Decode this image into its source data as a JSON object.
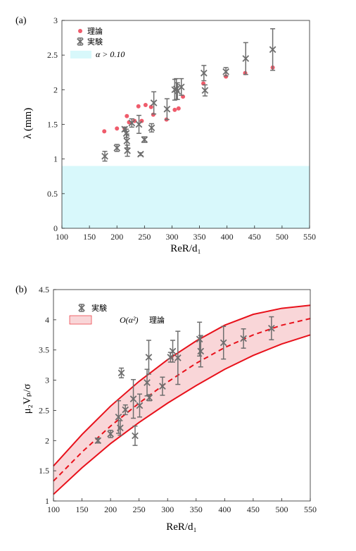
{
  "colors": {
    "theory": "#ef5b6b",
    "experiment": "#6e6e6e",
    "band_a": "#d8f8fb",
    "curve_b": "#e8111b",
    "band_b": "#f9d6d8"
  },
  "chart_data": [
    {
      "panel": "(a)",
      "type": "scatter",
      "xlabel": "ReR/d₁",
      "ylabel": "λ (mm)",
      "xlim": [
        100,
        550
      ],
      "ylim": [
        0,
        3
      ],
      "xticks": [
        "100",
        "150",
        "200",
        "250",
        "300",
        "350",
        "400",
        "450",
        "500",
        "550"
      ],
      "yticks": [
        "0",
        "0.5",
        "1",
        "1.5",
        "2",
        "2.5",
        "3"
      ],
      "grid": false,
      "legend_position": "top-left",
      "legend": {
        "theory_label": "理論",
        "experiment_label": "実験",
        "band_label": "α > 0.10"
      },
      "band": {
        "y_range": [
          0,
          0.9
        ],
        "name": "α > 0.10"
      },
      "series": [
        {
          "name": "理論",
          "x": [
            177,
            200,
            214,
            218,
            222,
            232,
            239,
            245,
            252,
            262,
            266,
            290,
            305,
            312,
            320,
            357,
            398,
            433,
            483
          ],
          "y": [
            1.4,
            1.44,
            1.44,
            1.62,
            1.53,
            1.55,
            1.76,
            1.55,
            1.78,
            1.75,
            1.64,
            1.57,
            1.71,
            1.73,
            1.9,
            2.09,
            2.19,
            2.24,
            2.32
          ]
        },
        {
          "name": "実験",
          "points": [
            {
              "x": 178,
              "y": 1.04,
              "err": 0.07
            },
            {
              "x": 200,
              "y": 1.16,
              "err": 0.05
            },
            {
              "x": 214,
              "y": 1.43,
              "err": 0.03
            },
            {
              "x": 217,
              "y": 1.37,
              "err": 0.06
            },
            {
              "x": 218,
              "y": 1.26,
              "err": 0.1
            },
            {
              "x": 219,
              "y": 1.12,
              "err": 0.08
            },
            {
              "x": 227,
              "y": 1.52,
              "err": 0.06
            },
            {
              "x": 240,
              "y": 1.5,
              "err": 0.13
            },
            {
              "x": 243,
              "y": 1.07,
              "err": 0.02
            },
            {
              "x": 250,
              "y": 1.28,
              "err": 0.04
            },
            {
              "x": 263,
              "y": 1.45,
              "err": 0.06
            },
            {
              "x": 267,
              "y": 1.81,
              "err": 0.16
            },
            {
              "x": 291,
              "y": 1.72,
              "err": 0.15
            },
            {
              "x": 305,
              "y": 2.0,
              "err": 0.15
            },
            {
              "x": 308,
              "y": 2.01,
              "err": 0.15
            },
            {
              "x": 310,
              "y": 1.98,
              "err": 0.12
            },
            {
              "x": 317,
              "y": 2.04,
              "err": 0.12
            },
            {
              "x": 358,
              "y": 2.24,
              "err": 0.11
            },
            {
              "x": 360,
              "y": 1.99,
              "err": 0.08
            },
            {
              "x": 398,
              "y": 2.26,
              "err": 0.06
            },
            {
              "x": 434,
              "y": 2.45,
              "err": 0.23
            },
            {
              "x": 483,
              "y": 2.58,
              "err": 0.3
            }
          ]
        }
      ]
    },
    {
      "panel": "(b)",
      "type": "scatter",
      "xlabel": "ReR/d₁",
      "ylabel": "μ₂Vₚ/σ",
      "xlim": [
        100,
        550
      ],
      "ylim": [
        1,
        4.5
      ],
      "xticks": [
        "100",
        "150",
        "200",
        "250",
        "300",
        "350",
        "400",
        "450",
        "500",
        "550"
      ],
      "yticks": [
        "1",
        "1.5",
        "2",
        "2.5",
        "3",
        "3.5",
        "4",
        "4.5"
      ],
      "grid": false,
      "legend_position": "top-left",
      "legend": {
        "experiment_label": "実験",
        "band_label": "O(α²)",
        "theory_label": "理論"
      },
      "theory_curve": {
        "x": [
          100,
          150,
          200,
          250,
          300,
          350,
          400,
          450,
          500,
          550
        ],
        "y_mid": [
          1.33,
          1.81,
          2.24,
          2.62,
          2.97,
          3.28,
          3.54,
          3.75,
          3.91,
          4.02
        ],
        "y_upper": [
          1.58,
          2.1,
          2.57,
          2.98,
          3.34,
          3.65,
          3.91,
          4.09,
          4.19,
          4.24
        ],
        "y_lower": [
          1.11,
          1.55,
          1.95,
          2.3,
          2.62,
          2.91,
          3.18,
          3.41,
          3.6,
          3.75
        ]
      },
      "series": [
        {
          "name": "実験",
          "points": [
            {
              "x": 178,
              "y": 2.0,
              "err": 0.04
            },
            {
              "x": 200,
              "y": 2.11,
              "err": 0.06
            },
            {
              "x": 214,
              "y": 2.39,
              "err": 0.27
            },
            {
              "x": 217,
              "y": 2.21,
              "err": 0.12
            },
            {
              "x": 219,
              "y": 3.12,
              "err": 0.08
            },
            {
              "x": 226,
              "y": 2.51,
              "err": 0.08
            },
            {
              "x": 240,
              "y": 2.69,
              "err": 0.32
            },
            {
              "x": 243,
              "y": 2.08,
              "err": 0.16
            },
            {
              "x": 251,
              "y": 2.58,
              "err": 0.19
            },
            {
              "x": 264,
              "y": 2.96,
              "err": 0.22
            },
            {
              "x": 267,
              "y": 3.38,
              "err": 0.28
            },
            {
              "x": 268,
              "y": 2.71,
              "err": 0.05
            },
            {
              "x": 291,
              "y": 2.9,
              "err": 0.15
            },
            {
              "x": 305,
              "y": 3.38,
              "err": 0.08
            },
            {
              "x": 309,
              "y": 3.48,
              "err": 0.18
            },
            {
              "x": 318,
              "y": 3.37,
              "err": 0.44
            },
            {
              "x": 356,
              "y": 3.68,
              "err": 0.28
            },
            {
              "x": 358,
              "y": 3.48,
              "err": 0.26
            },
            {
              "x": 398,
              "y": 3.62,
              "err": 0.27
            },
            {
              "x": 433,
              "y": 3.69,
              "err": 0.16
            },
            {
              "x": 482,
              "y": 3.86,
              "err": 0.19
            }
          ]
        }
      ]
    }
  ]
}
